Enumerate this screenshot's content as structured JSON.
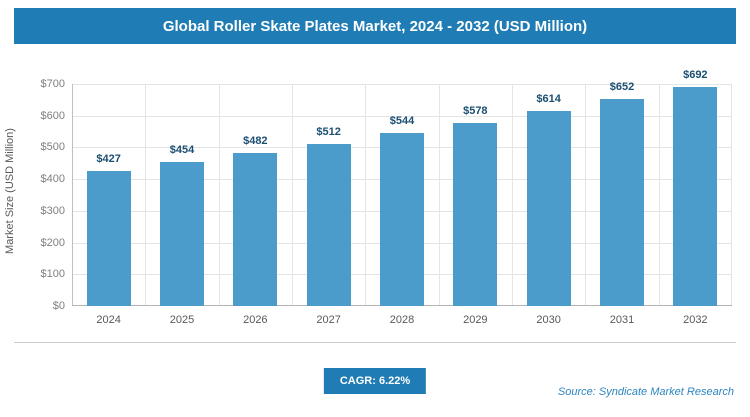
{
  "header": {
    "title": "Global Roller Skate Plates Market, 2024 - 2032 (USD Million)"
  },
  "chart_data": {
    "type": "bar",
    "title": "Global Roller Skate Plates Market, 2024 - 2032 (USD Million)",
    "categories": [
      "2024",
      "2025",
      "2026",
      "2027",
      "2028",
      "2029",
      "2030",
      "2031",
      "2032"
    ],
    "values": [
      427,
      454,
      482,
      512,
      544,
      578,
      614,
      652,
      692
    ],
    "value_labels": [
      "$427",
      "$454",
      "$482",
      "$512",
      "$544",
      "$578",
      "$614",
      "$652",
      "$692"
    ],
    "xlabel": "",
    "ylabel": "Market Size (USD Million)",
    "ylim": [
      0,
      700
    ],
    "ytick_values": [
      0,
      100,
      200,
      300,
      400,
      500,
      600,
      700
    ],
    "ytick_labels": [
      "$0",
      "$100",
      "$200",
      "$300",
      "$400",
      "$500",
      "$600",
      "$700"
    ],
    "grid": true,
    "legend": "none",
    "bar_color": "#4b9cca"
  },
  "footer": {
    "cagr_label": "CAGR: 6.22%",
    "source": "Source: Syndicate Market Research"
  },
  "colors": {
    "accent": "#1f7cb4",
    "bar": "#4b9cca",
    "grid": "#e4e4e4",
    "value_label": "#1b4f72"
  }
}
